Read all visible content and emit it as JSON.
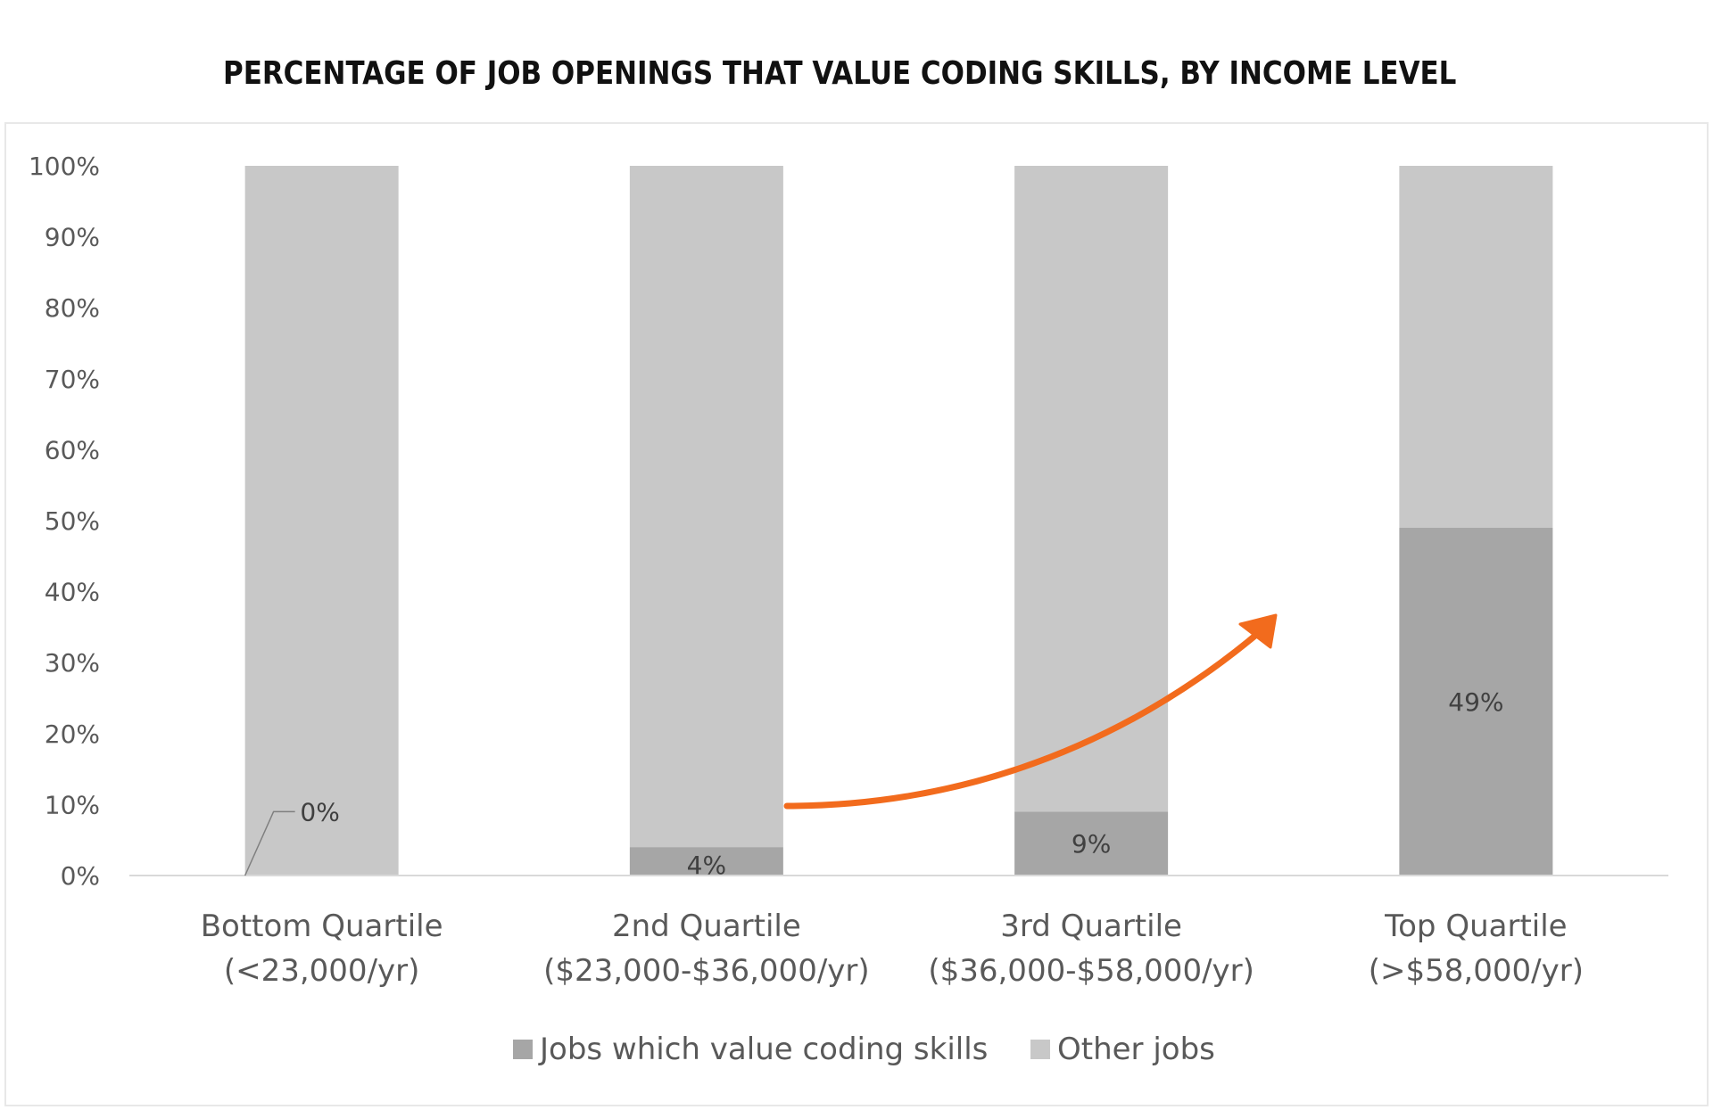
{
  "chart_data": {
    "type": "bar",
    "stacked": true,
    "percent_stacked": true,
    "title": "PERCENTAGE OF JOB OPENINGS THAT VALUE CODING SKILLS, BY INCOME LEVEL",
    "categories": [
      [
        "Bottom Quartile",
        "(<23,000/yr)"
      ],
      [
        "2nd Quartile",
        "($23,000-$36,000/yr)"
      ],
      [
        "3rd Quartile",
        "($36,000-$58,000/yr)"
      ],
      [
        "Top Quartile",
        "(>$58,000/yr)"
      ]
    ],
    "series": [
      {
        "name": "Jobs which value coding skills",
        "values": [
          0,
          4,
          9,
          49
        ],
        "labels": [
          "0%",
          "4%",
          "9%",
          "49%"
        ],
        "color": "#a6a6a6"
      },
      {
        "name": "Other jobs",
        "values": [
          100,
          96,
          91,
          51
        ],
        "color": "#c8c8c8"
      }
    ],
    "ylim": [
      0,
      100
    ],
    "yticks": [
      "0%",
      "10%",
      "20%",
      "30%",
      "40%",
      "50%",
      "60%",
      "70%",
      "80%",
      "90%",
      "100%"
    ],
    "xlabel": "",
    "ylabel": "",
    "grid": false,
    "legend_position": "bottom",
    "annotation": {
      "kind": "arrow",
      "color": "#f26b1d"
    }
  }
}
